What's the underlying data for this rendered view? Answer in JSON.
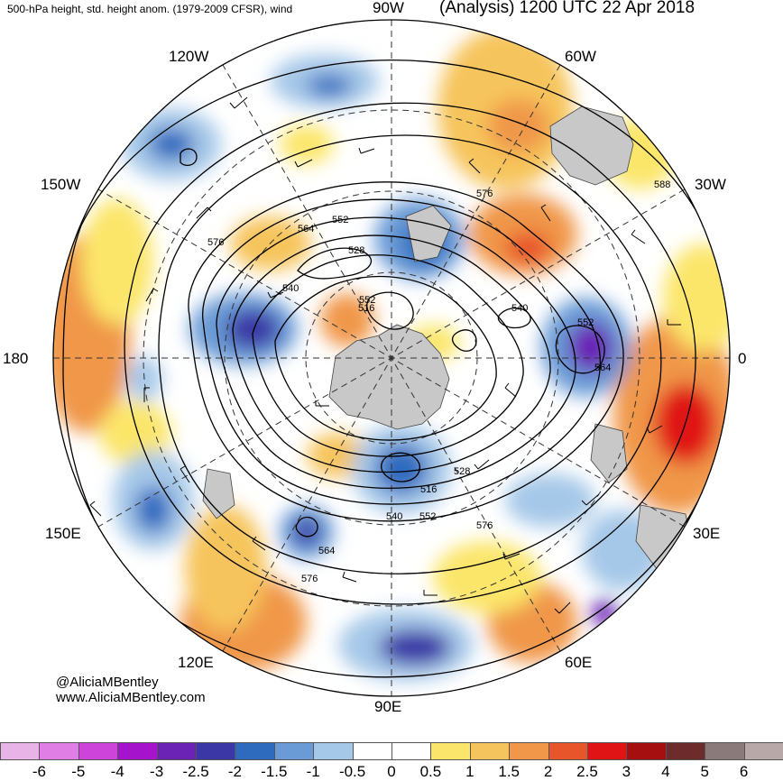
{
  "header": {
    "title_left": "500-hPa height, std. height anom. (1979-2009 CFSR), wind",
    "title_center": "90W",
    "title_right": "(Analysis) 1200 UTC 22 Apr 2018"
  },
  "map": {
    "projection": "north-polar-stereographic",
    "longitude_labels": [
      "90W",
      "60W",
      "30W",
      "0",
      "30E",
      "60E",
      "90E",
      "120E",
      "150E",
      "180",
      "150W",
      "120W"
    ],
    "contour_labels": [
      "588",
      "576",
      "576",
      "576",
      "576",
      "564",
      "564",
      "564",
      "552",
      "552",
      "552",
      "552",
      "540",
      "540",
      "540",
      "528",
      "528",
      "516",
      "516"
    ],
    "colors": {
      "negative_anomaly": "#2e6bbf",
      "positive_anomaly": "#e8552b",
      "land_mask": "#c8c8c8",
      "contour": "#000000"
    }
  },
  "credit": {
    "line1": "@AliciaMBentley",
    "line2": "www.AliciaMBentley.com"
  },
  "colorbar": {
    "labels": [
      "-6",
      "-5",
      "-4",
      "-3",
      "-2.5",
      "-2",
      "-1.5",
      "-1",
      "-0.5",
      "0",
      "0.5",
      "1",
      "1.5",
      "2",
      "2.5",
      "3",
      "4",
      "5",
      "6"
    ],
    "colors": [
      "#e8b4e8",
      "#e17ee6",
      "#cc44d9",
      "#a514cc",
      "#6a23b5",
      "#3b37a6",
      "#2e6bbf",
      "#6a9bd6",
      "#a6c8e8",
      "#ffffff",
      "#ffffff",
      "#fbe66b",
      "#f6c45c",
      "#f0974a",
      "#e8552b",
      "#e01414",
      "#a50f0f",
      "#6e2b2b",
      "#8a7a7a",
      "#b8a8a8"
    ]
  }
}
